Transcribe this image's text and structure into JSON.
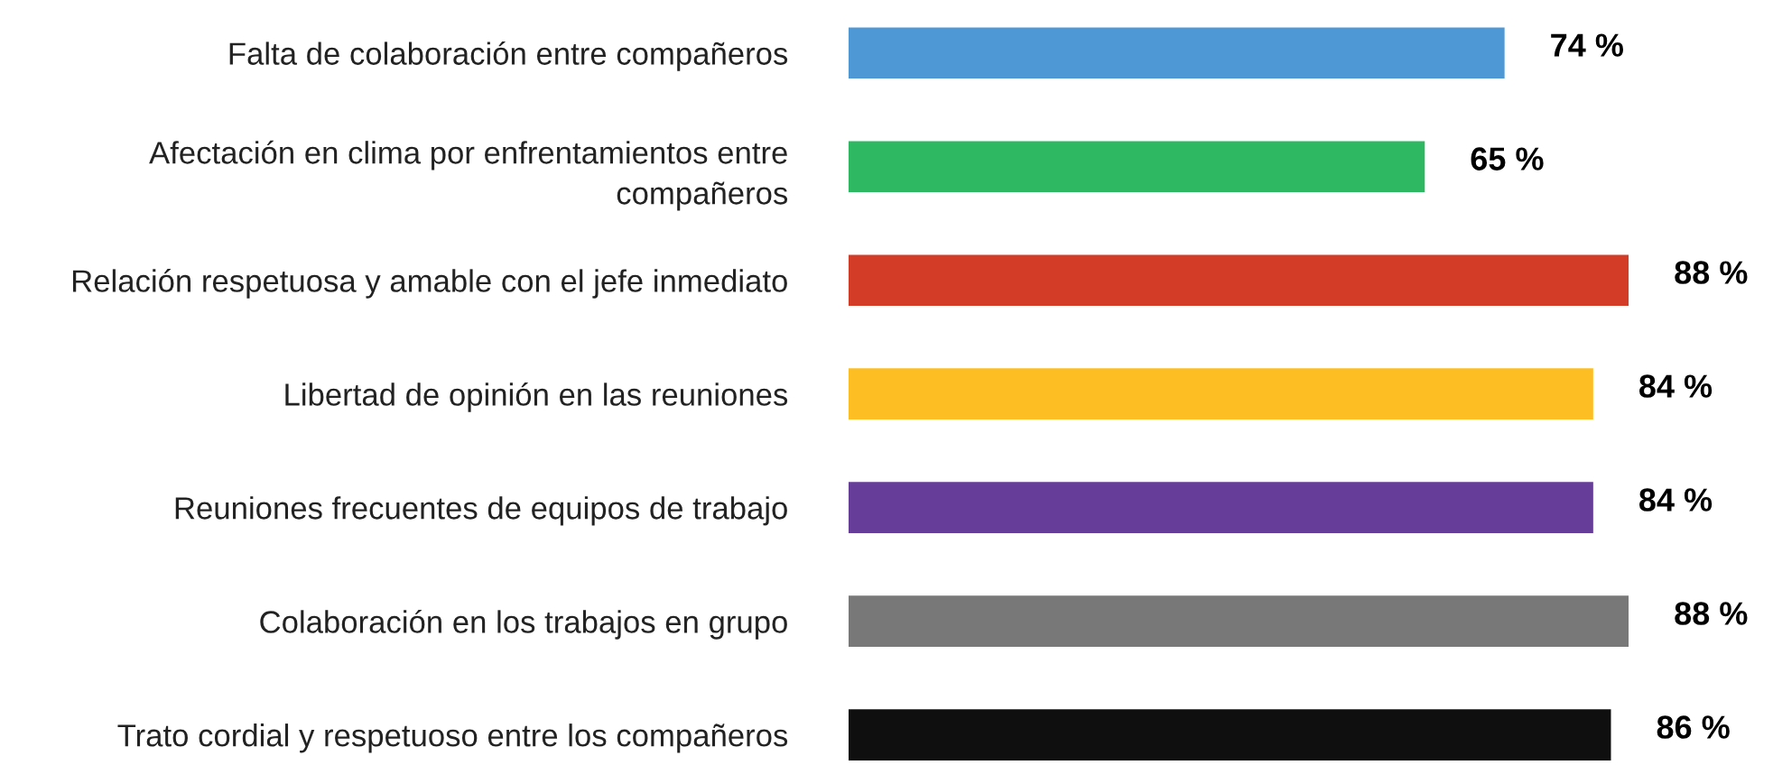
{
  "chart_data": {
    "type": "bar",
    "orientation": "horizontal",
    "categories": [
      "Falta de colaboración entre compañeros",
      "Afectación en clima por enfrentamientos entre\ncompañeros",
      "Relación respetuosa y amable con el jefe inmediato",
      "Libertad de opinión en las reuniones",
      "Reuniones frecuentes de equipos de trabajo",
      "Colaboración en los trabajos en grupo",
      "Trato cordial y respetuoso entre los compañeros"
    ],
    "values": [
      74,
      65,
      88,
      84,
      84,
      88,
      86
    ],
    "colors": [
      "#4f98d6",
      "#2eb862",
      "#d33c26",
      "#fdbe24",
      "#663d99",
      "#787878",
      "#0f0f0f"
    ],
    "value_labels": [
      "74 %",
      "65 %",
      "88 %",
      "84 %",
      "84 %",
      "88 %",
      "86 %"
    ],
    "grid": false,
    "legend": false
  }
}
